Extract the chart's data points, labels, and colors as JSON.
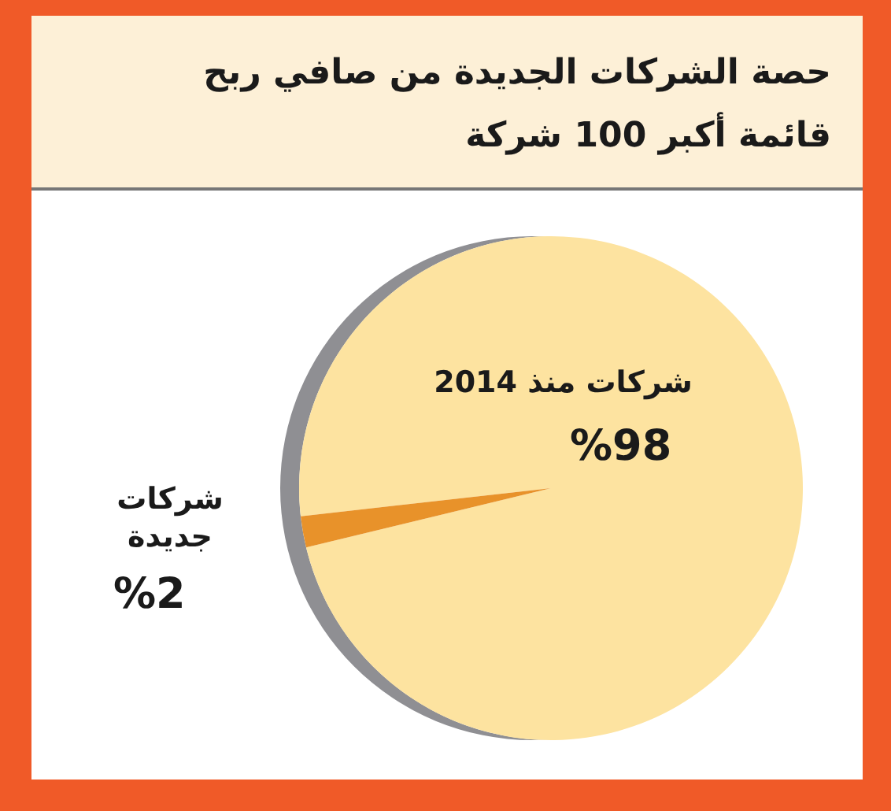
{
  "chart_data": {
    "type": "pie",
    "title": "حصة الشركات الجديدة من صافي ربح",
    "subtitle": "قائمة أكبر 100 شركة",
    "categories": [
      "شركات منذ 2014",
      "شركات جديدة"
    ],
    "values": [
      98,
      2
    ],
    "colors": [
      "#fde3a0",
      "#e8922a"
    ],
    "value_labels": [
      "%98",
      "%2"
    ]
  }
}
